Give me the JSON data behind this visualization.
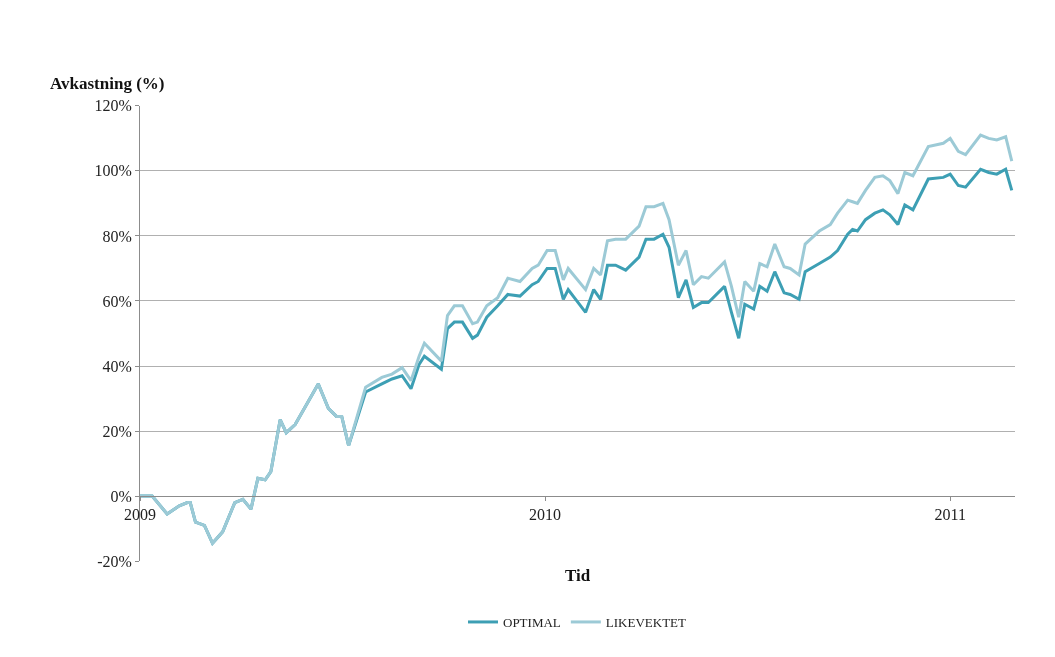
{
  "chart_data": {
    "type": "line",
    "ylabel": "Avkastning (%)",
    "xlabel": "Tid",
    "x": [
      2009.0,
      2009.03,
      2009.067,
      2009.097,
      2009.117,
      2009.124,
      2009.137,
      2009.159,
      2009.179,
      2009.204,
      2009.234,
      2009.254,
      2009.274,
      2009.291,
      2009.309,
      2009.323,
      2009.346,
      2009.361,
      2009.383,
      2009.44,
      2009.465,
      2009.485,
      2009.498,
      2009.515,
      2009.557,
      2009.597,
      2009.622,
      2009.647,
      2009.669,
      2009.689,
      2009.702,
      2009.744,
      2009.759,
      2009.776,
      2009.796,
      2009.821,
      2009.833,
      2009.856,
      2009.883,
      2009.908,
      2009.938,
      2009.968,
      2009.983,
      2010.005,
      2010.025,
      2010.045,
      2010.057,
      2010.1,
      2010.12,
      2010.137,
      2010.154,
      2010.174,
      2010.199,
      2010.232,
      2010.249,
      2010.269,
      2010.291,
      2010.306,
      2010.329,
      2010.348,
      2010.366,
      2010.386,
      2010.403,
      2010.443,
      2010.46,
      2010.478,
      2010.493,
      2010.515,
      2010.53,
      2010.548,
      2010.567,
      2010.59,
      2010.605,
      2010.627,
      2010.642,
      2010.677,
      2010.704,
      2010.722,
      2010.747,
      2010.759,
      2010.771,
      2010.791,
      2010.814,
      2010.834,
      2010.851,
      2010.871,
      2010.888,
      2010.908,
      2010.946,
      2010.983,
      2011.0,
      2011.02,
      2011.038,
      2011.075,
      2011.095,
      2011.115,
      2011.137,
      2011.152
    ],
    "series": [
      {
        "name": "OPTIMAL",
        "color": "#3d9fb4",
        "values": [
          0,
          0,
          -5.5,
          -3,
          -2,
          -2,
          -8,
          -9,
          -14.5,
          -11,
          -2,
          -1,
          -4,
          5.5,
          5,
          7.5,
          23.5,
          19.5,
          22,
          34.5,
          27,
          24.5,
          24.5,
          15.5,
          32,
          34.5,
          36,
          37,
          33,
          40.5,
          43,
          39,
          51.5,
          53.5,
          53.5,
          48.5,
          49.5,
          55,
          58.5,
          62,
          61.5,
          65,
          66,
          70,
          70,
          60.5,
          63.5,
          56.5,
          63.5,
          60.5,
          71,
          71,
          69.5,
          73.5,
          79,
          79,
          80.5,
          76.5,
          61,
          66.5,
          58,
          59.5,
          59.5,
          64.5,
          56.5,
          48.5,
          59,
          57.5,
          64.5,
          63,
          69,
          62.5,
          62,
          60.5,
          69,
          71.5,
          73.5,
          75.5,
          80.5,
          82,
          81.5,
          85,
          87,
          88,
          86.5,
          83.5,
          89.5,
          88,
          97.5,
          98,
          99,
          95.5,
          95,
          100.5,
          99.5,
          99,
          100.5,
          94
        ]
      },
      {
        "name": "LIKEVEKTET",
        "color": "#9ccad6",
        "values": [
          0,
          0,
          -5.5,
          -3,
          -2,
          -2,
          -8,
          -9,
          -14.5,
          -11,
          -2,
          -1,
          -4,
          5.5,
          5,
          7.5,
          23.5,
          19.5,
          22,
          34.5,
          27,
          24.5,
          24.5,
          15.5,
          33.5,
          36.5,
          37.5,
          39.5,
          35.5,
          43,
          47,
          41.5,
          55.5,
          58.5,
          58.5,
          53,
          53.5,
          58.5,
          61,
          67,
          66,
          70,
          71,
          75.5,
          75.5,
          66.5,
          70,
          63.5,
          70,
          68,
          78.5,
          79,
          79,
          83,
          89,
          89,
          90,
          85,
          71,
          75.5,
          65,
          67.5,
          67,
          72,
          64.5,
          55,
          66,
          63,
          71.5,
          70.5,
          77.5,
          70.5,
          70,
          68,
          77.5,
          81.5,
          83.5,
          87,
          91,
          90.5,
          90,
          94,
          98,
          98.5,
          97,
          93,
          99.5,
          98.5,
          107.5,
          108.5,
          110,
          106,
          105,
          111,
          110,
          109.5,
          110.5,
          103
        ]
      }
    ],
    "xlim": [
      2009.0,
      2011.16
    ],
    "xticks": [
      2009,
      2010,
      2011
    ],
    "ylim": [
      -20,
      120
    ],
    "yticks": [
      {
        "value": -20,
        "label": "-20%"
      },
      {
        "value": 0,
        "label": "0%"
      },
      {
        "value": 20,
        "label": "20%"
      },
      {
        "value": 40,
        "label": "40%"
      },
      {
        "value": 60,
        "label": "60%"
      },
      {
        "value": 80,
        "label": "80%"
      },
      {
        "value": 100,
        "label": "100%"
      },
      {
        "value": 120,
        "label": "120%"
      }
    ],
    "grid": "y",
    "legend": "bottom",
    "marker": "none",
    "line_style": "solid"
  }
}
